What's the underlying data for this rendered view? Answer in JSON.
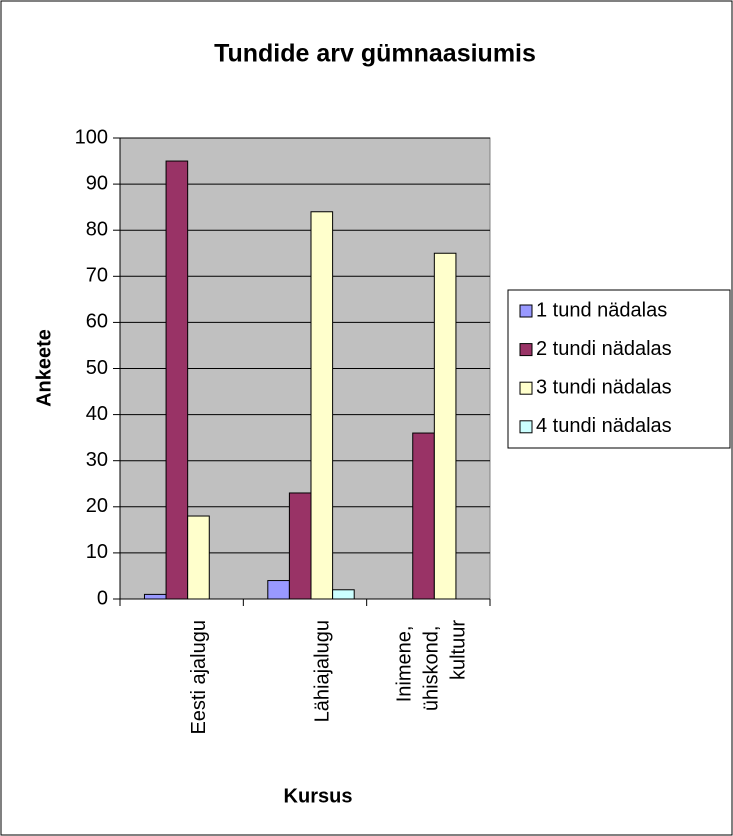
{
  "chart_data": {
    "type": "bar",
    "title": "Tundide arv gümnaasiumis",
    "x_label": "Kursus",
    "y_label": "Ankeete",
    "categories": [
      "Eesti ajalugu",
      "Lähiajalugu",
      "Inimene, ühiskond, kultuur"
    ],
    "series": [
      {
        "name": "1 tund nädalas",
        "color": "#9999ff",
        "values": [
          1,
          4,
          null
        ]
      },
      {
        "name": "2 tundi nädalas",
        "color": "#993366",
        "values": [
          95,
          23,
          36
        ]
      },
      {
        "name": "3 tundi nädalas",
        "color": "#ffffcc",
        "values": [
          18,
          84,
          75
        ]
      },
      {
        "name": "4 tundi nädalas",
        "color": "#ccffff",
        "values": [
          null,
          2,
          null
        ]
      }
    ],
    "ylim": [
      0,
      100
    ],
    "yticks": [
      0,
      10,
      20,
      30,
      40,
      50,
      60,
      70,
      80,
      90,
      100
    ],
    "grid": true,
    "plot_background": "#c0c0c0",
    "legend": "right"
  }
}
